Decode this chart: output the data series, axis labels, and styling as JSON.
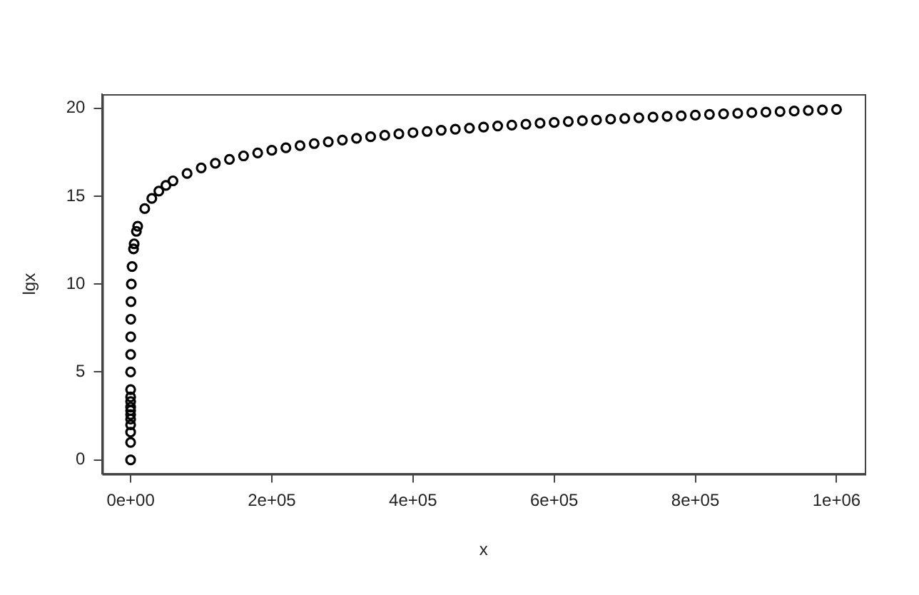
{
  "chart_data": {
    "type": "scatter",
    "xlabel": "x",
    "ylabel": "lgx",
    "x": [
      1,
      2,
      3,
      4,
      5,
      6,
      7,
      8,
      10,
      12,
      16,
      32,
      64,
      128,
      256,
      512,
      1024,
      2048,
      4096,
      5000,
      8192,
      10000,
      20000,
      30000,
      40000,
      50000,
      60000,
      80000,
      100000,
      120000,
      140000,
      160000,
      180000,
      200000,
      220000,
      240000,
      260000,
      280000,
      300000,
      320000,
      340000,
      360000,
      380000,
      400000,
      420000,
      440000,
      460000,
      480000,
      500000,
      520000,
      540000,
      560000,
      580000,
      600000,
      620000,
      640000,
      660000,
      680000,
      700000,
      720000,
      740000,
      760000,
      780000,
      800000,
      820000,
      840000,
      860000,
      880000,
      900000,
      920000,
      940000,
      960000,
      980000,
      1000000
    ],
    "values": [
      0,
      1,
      1.58,
      2,
      2.32,
      2.58,
      2.81,
      3,
      3.32,
      3.58,
      4,
      5,
      6,
      7,
      8,
      9,
      10,
      11,
      12,
      12.29,
      13,
      13.29,
      14.29,
      14.87,
      15.29,
      15.61,
      15.87,
      16.29,
      16.61,
      16.87,
      17.09,
      17.29,
      17.46,
      17.61,
      17.75,
      17.87,
      17.99,
      18.09,
      18.19,
      18.29,
      18.38,
      18.46,
      18.54,
      18.61,
      18.68,
      18.75,
      18.81,
      18.87,
      18.93,
      18.99,
      19.04,
      19.09,
      19.15,
      19.19,
      19.24,
      19.29,
      19.33,
      19.38,
      19.42,
      19.46,
      19.5,
      19.54,
      19.57,
      19.61,
      19.65,
      19.68,
      19.71,
      19.75,
      19.78,
      19.81,
      19.84,
      19.87,
      19.9,
      19.93
    ],
    "color": "#000000",
    "marker": "circle",
    "grid": false,
    "xlim": [
      -40000,
      1040000
    ],
    "ylim": [
      -0.8,
      20.8
    ],
    "xticks": [
      {
        "value": 0,
        "label": "0e+00"
      },
      {
        "value": 200000,
        "label": "2e+05"
      },
      {
        "value": 400000,
        "label": "4e+05"
      },
      {
        "value": 600000,
        "label": "6e+05"
      },
      {
        "value": 800000,
        "label": "8e+05"
      },
      {
        "value": 1000000,
        "label": "1e+06"
      }
    ],
    "yticks": [
      0,
      5,
      10,
      15,
      20
    ]
  }
}
